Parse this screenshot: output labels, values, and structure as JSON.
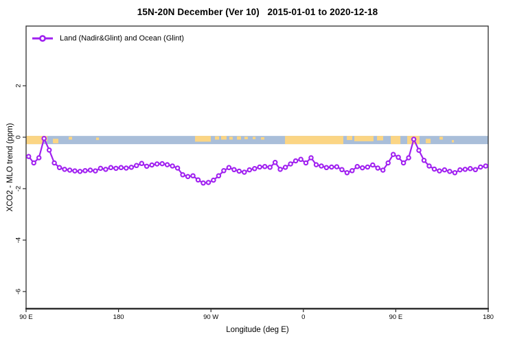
{
  "title": "15N-20N December (Ver 10)   2015-01-01 to 2020-12-18",
  "legend": {
    "label": "Land (Nadir&Glint) and Ocean (Glint)",
    "marker": "open-circle-on-line",
    "marker_color": "#a020f0"
  },
  "chart_data": {
    "type": "line",
    "title": "15N-20N December (Ver 10)   2015-01-01 to 2020-12-18",
    "xlabel": "Longitude (deg E)",
    "ylabel": "XCO2 - MLO trend (ppm)",
    "grid": false,
    "legend_position": "top-left-inside",
    "x_axis": {
      "range": [
        90,
        540
      ],
      "ticks": [
        90,
        180,
        270,
        360,
        450,
        540
      ],
      "tick_labels": [
        "90 E",
        "180",
        "90 W",
        "0",
        "90 E",
        "180"
      ]
    },
    "y_axis": {
      "range": [
        -6.67,
        4.32
      ],
      "ticks": [
        2,
        0,
        -2,
        -4,
        -6
      ],
      "tick_labels": [
        "2",
        "0",
        "-2",
        "-4",
        "-6"
      ]
    },
    "series": [
      {
        "name": "Land (Nadir&Glint) and Ocean (Glint)",
        "color": "#a020f0",
        "marker": "open-circle",
        "x_start": 92.5,
        "x_step": 5,
        "values": [
          -0.75,
          -1.0,
          -0.8,
          -0.05,
          -0.5,
          -1.0,
          -1.18,
          -1.25,
          -1.28,
          -1.31,
          -1.33,
          -1.3,
          -1.28,
          -1.31,
          -1.21,
          -1.25,
          -1.18,
          -1.21,
          -1.18,
          -1.2,
          -1.17,
          -1.1,
          -1.02,
          -1.13,
          -1.08,
          -1.04,
          -1.03,
          -1.07,
          -1.12,
          -1.2,
          -1.46,
          -1.53,
          -1.5,
          -1.66,
          -1.78,
          -1.76,
          -1.67,
          -1.5,
          -1.3,
          -1.18,
          -1.26,
          -1.32,
          -1.36,
          -1.27,
          -1.22,
          -1.16,
          -1.14,
          -1.17,
          -0.98,
          -1.25,
          -1.17,
          -1.04,
          -0.92,
          -0.86,
          -1.0,
          -0.8,
          -1.07,
          -1.12,
          -1.18,
          -1.16,
          -1.15,
          -1.26,
          -1.38,
          -1.3,
          -1.14,
          -1.19,
          -1.16,
          -1.08,
          -1.2,
          -1.28,
          -1.0,
          -0.67,
          -0.78,
          -1.0,
          -0.8,
          -0.08,
          -0.51,
          -0.9,
          -1.12,
          -1.24,
          -1.31,
          -1.27,
          -1.33,
          -1.38,
          -1.27,
          -1.25,
          -1.22,
          -1.26,
          -1.16,
          -1.12
        ]
      }
    ],
    "map_band": {
      "description": "latitude-band world map strip drawn at y=0 (ocean/land)",
      "y_top_ppm": 0.05,
      "y_bottom_ppm": -0.27,
      "ocean_color": "#a9bed9",
      "land_color": "#fbd584",
      "land_patches": [
        [
          90,
          16,
          0,
          1
        ],
        [
          106,
          4.7,
          0,
          0.6
        ],
        [
          116.1,
          5.3,
          0.35,
          0.55
        ],
        [
          131.5,
          3.3,
          0.1,
          0.35
        ],
        [
          158.2,
          2.7,
          0.2,
          0.3
        ],
        [
          254.5,
          15.4,
          0,
          0.7
        ],
        [
          273.9,
          4,
          0.05,
          0.4
        ],
        [
          279.9,
          5.3,
          0,
          0.45
        ],
        [
          287.9,
          3.3,
          0.1,
          0.35
        ],
        [
          295.3,
          4,
          0.05,
          0.4
        ],
        [
          302.6,
          3.3,
          0.1,
          0.3
        ],
        [
          310.7,
          2.7,
          0.1,
          0.3
        ],
        [
          318.7,
          3.3,
          0.15,
          0.3
        ],
        [
          342.1,
          56.8,
          0,
          1
        ],
        [
          402.3,
          5.3,
          0,
          0.5
        ],
        [
          409.6,
          18.7,
          0,
          0.65
        ],
        [
          431.7,
          6,
          0,
          0.55
        ],
        [
          445.1,
          9.4,
          0,
          1
        ],
        [
          461.1,
          12,
          0,
          1
        ],
        [
          479.2,
          4.7,
          0.35,
          0.55
        ],
        [
          492.5,
          3.3,
          0.1,
          0.35
        ],
        [
          504.6,
          2,
          0.5,
          0.3
        ]
      ]
    }
  }
}
